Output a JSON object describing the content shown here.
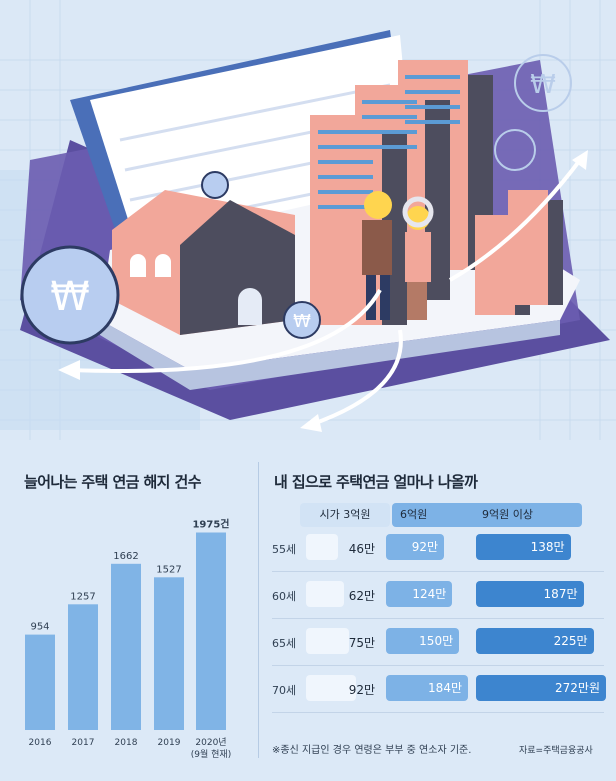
{
  "left_title": "늘어나는 주택 연금 해지 건수",
  "right_title": "내 집으로 주택연금 얼마나 나올까",
  "table": {
    "columns": [
      "시가 3억원",
      "6억원",
      "9억원 이상"
    ],
    "rows": [
      {
        "age": "55세",
        "v1": "46만",
        "v2": "92만",
        "v3": "138만",
        "v1n": 46,
        "v2n": 92,
        "v3n": 138
      },
      {
        "age": "60세",
        "v1": "62만",
        "v2": "124만",
        "v3": "187만",
        "v1n": 62,
        "v2n": 124,
        "v3n": 187
      },
      {
        "age": "65세",
        "v1": "75만",
        "v2": "150만",
        "v3": "225만",
        "v1n": 75,
        "v2n": 150,
        "v3n": 225
      },
      {
        "age": "70세",
        "v1": "92만",
        "v2": "184만",
        "v3": "272만원",
        "v1n": 92,
        "v2n": 184,
        "v3n": 272
      }
    ]
  },
  "footnote": "※종신 지급인 경우 연령은 부부 중 연소자 기준.",
  "source": "자료=주택금융공사",
  "colors": {
    "bar": "#80b4e6",
    "col1": "#f0f6fd",
    "col2": "#7db2e6",
    "col3": "#3d85cf"
  },
  "chart_data": {
    "type": "bar",
    "title": "늘어나는 주택 연금 해지 건수",
    "categories": [
      "2016",
      "2017",
      "2018",
      "2019",
      "2020년\n(9월 현재)"
    ],
    "values": [
      954,
      1257,
      1662,
      1527,
      1975
    ],
    "value_labels": [
      "954",
      "1257",
      "1662",
      "1527",
      "1975건"
    ],
    "ylim": [
      0,
      2000
    ]
  }
}
